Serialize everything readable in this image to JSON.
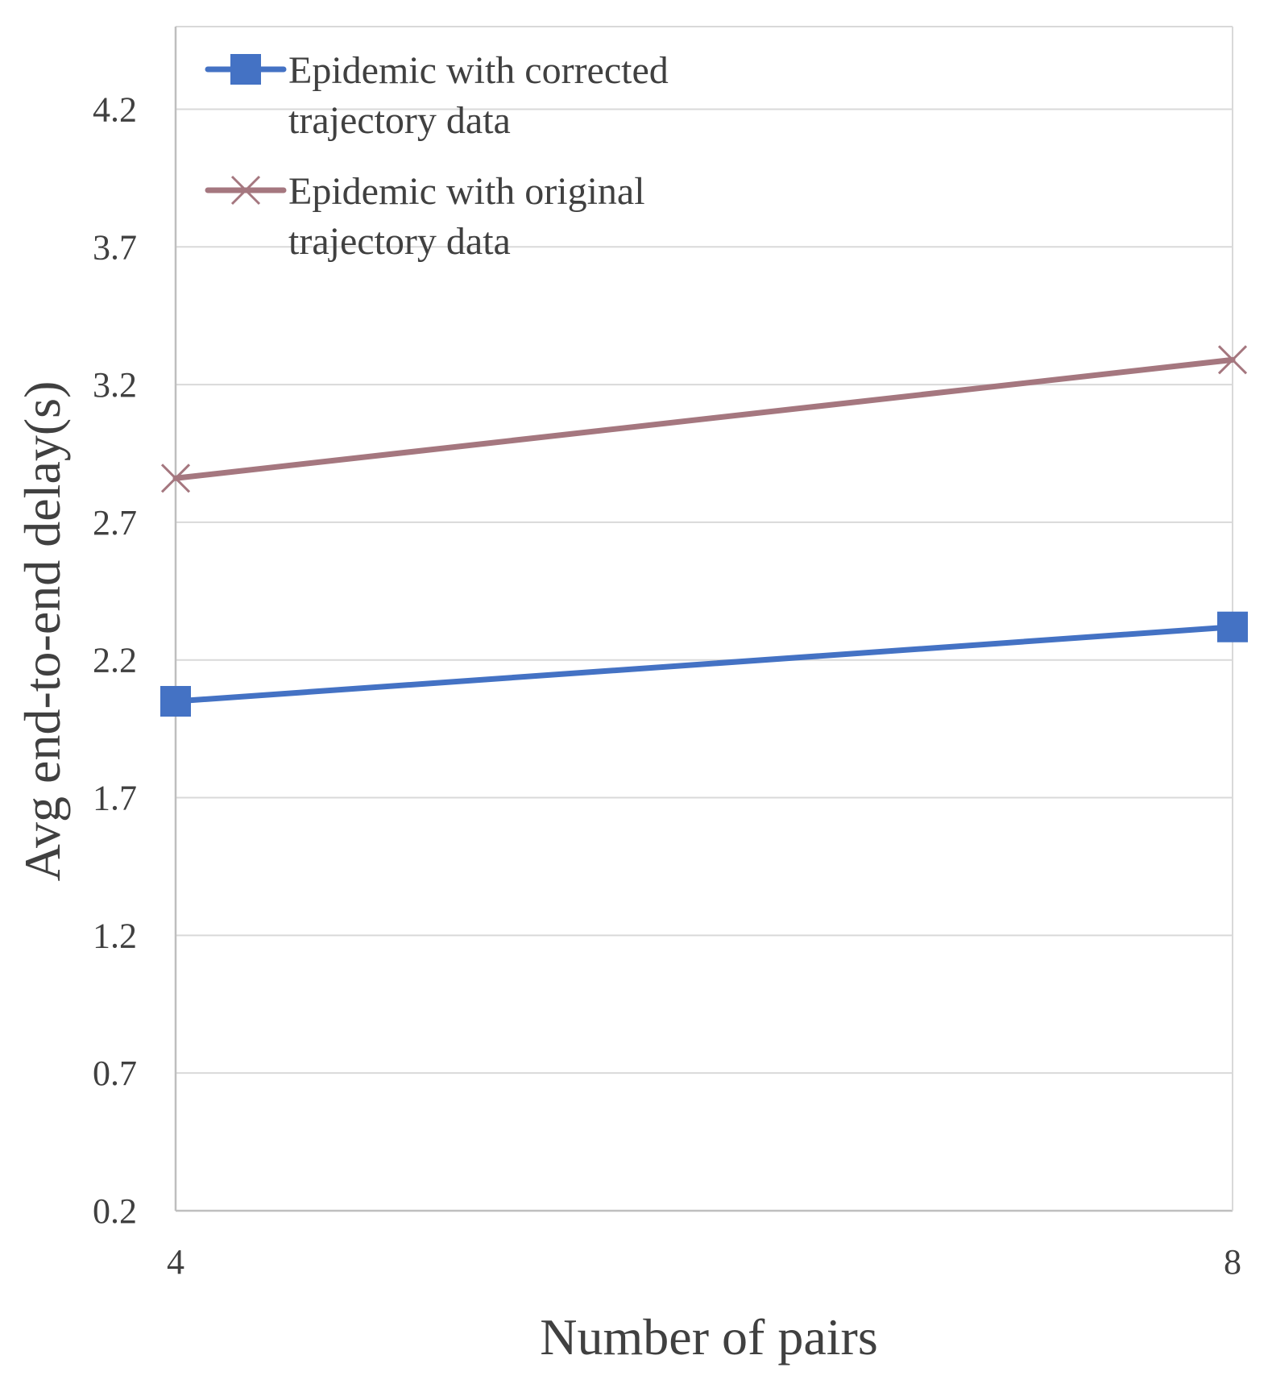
{
  "chart_data": {
    "type": "line",
    "x": [
      4,
      8
    ],
    "categories": [
      "4",
      "8"
    ],
    "series": [
      {
        "name": "Epidemic with corrected trajectory data",
        "legend_lines": [
          "Epidemic with corrected",
          "trajectory data"
        ],
        "values": [
          2.05,
          2.32
        ],
        "color": "#4472C4",
        "marker": "square"
      },
      {
        "name": "Epidemic with original trajectory data",
        "legend_lines": [
          "Epidemic with original",
          "trajectory data"
        ],
        "values": [
          2.86,
          3.29
        ],
        "color": "#A5777F",
        "marker": "x"
      }
    ],
    "title": "",
    "xlabel": "Number of pairs",
    "ylabel": "Avg end-to-end delay(s)",
    "ylim": [
      0.2,
      4.5
    ],
    "yticks": [
      0.2,
      0.7,
      1.2,
      1.7,
      2.2,
      2.7,
      3.2,
      3.7,
      4.2
    ],
    "ytick_labels": [
      "0.2",
      "0.7",
      "1.2",
      "1.7",
      "2.2",
      "2.7",
      "3.2",
      "3.7",
      "4.2"
    ],
    "grid": true,
    "legend": "top-left"
  },
  "colors": {
    "grid": "#D9D9D9",
    "axis": "#BFBFBF",
    "text": "#404040"
  }
}
